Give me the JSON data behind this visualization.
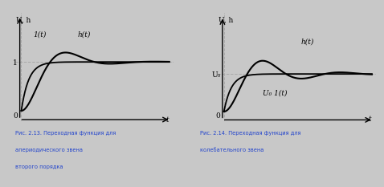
{
  "fig_width": 4.78,
  "fig_height": 2.33,
  "dpi": 100,
  "background_color": "#c8c8c8",
  "panel_bg": "#ffffff",
  "line_color": "#000000",
  "grid_color": "#aaaaaa",
  "caption_color": "#2244cc",
  "left_ylabel": "U, h",
  "right_ylabel": "U, h",
  "left_xlabel": "t",
  "right_xlabel": "t",
  "left_y1_label": "1(t)",
  "left_y2_label": "h(t)",
  "right_y1_label": "U₀ 1(t)",
  "right_y2_label": "h(t)",
  "left_hline_label": "1",
  "right_hline_label": "U₀",
  "caption_left_line1": "Рис. 2.13. Переходная функция для",
  "caption_left_line2": "апериодического звена",
  "caption_left_line3": "второго порядка",
  "caption_right_line1": "Рис. 2.14. Переходная функция для",
  "caption_right_line2": "колебательного звена"
}
